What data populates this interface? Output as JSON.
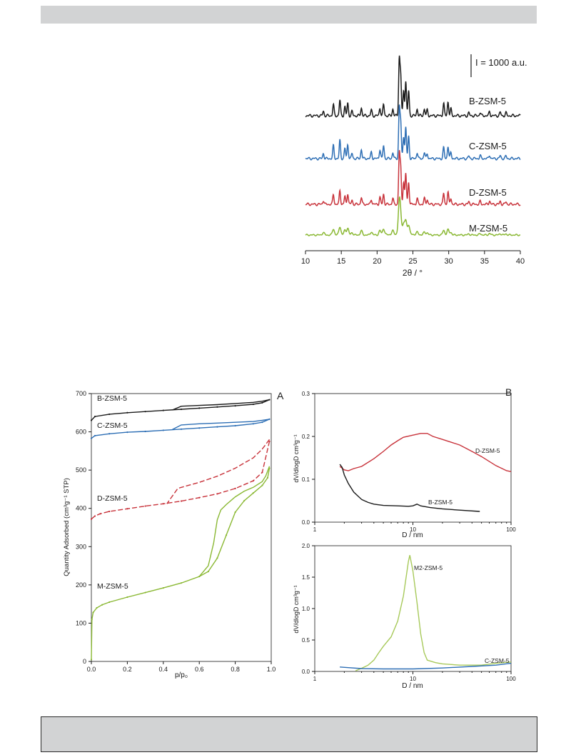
{
  "chart_data": [
    {
      "type": "line",
      "id": "xrd",
      "xlabel": "2θ / °",
      "xlim": [
        10,
        40
      ],
      "xticks": [
        10,
        15,
        20,
        25,
        30,
        35,
        40
      ],
      "scale_bar_label": "I = 1000 a.u.",
      "series": [
        {
          "name": "B-ZSM-5",
          "color": "#1a1a1a"
        },
        {
          "name": "C-ZSM-5",
          "color": "#2e6fb5"
        },
        {
          "name": "D-ZSM-5",
          "color": "#c8333b"
        },
        {
          "name": "M-ZSM-5",
          "color": "#8ab833"
        }
      ],
      "peaks": [
        {
          "x": 12.5,
          "h": 0.08
        },
        {
          "x": 13.9,
          "h": 0.2
        },
        {
          "x": 14.8,
          "h": 0.28
        },
        {
          "x": 15.5,
          "h": 0.16
        },
        {
          "x": 15.9,
          "h": 0.22
        },
        {
          "x": 16.5,
          "h": 0.08
        },
        {
          "x": 17.8,
          "h": 0.14
        },
        {
          "x": 19.2,
          "h": 0.1
        },
        {
          "x": 20.4,
          "h": 0.14
        },
        {
          "x": 20.9,
          "h": 0.2
        },
        {
          "x": 22.2,
          "h": 0.12
        },
        {
          "x": 23.1,
          "h": 1.0
        },
        {
          "x": 23.3,
          "h": 0.7
        },
        {
          "x": 23.7,
          "h": 0.45
        },
        {
          "x": 24.0,
          "h": 0.62
        },
        {
          "x": 24.4,
          "h": 0.45
        },
        {
          "x": 25.6,
          "h": 0.12
        },
        {
          "x": 26.6,
          "h": 0.12
        },
        {
          "x": 27.0,
          "h": 0.1
        },
        {
          "x": 29.3,
          "h": 0.22
        },
        {
          "x": 29.9,
          "h": 0.25
        },
        {
          "x": 30.3,
          "h": 0.12
        },
        {
          "x": 32.8,
          "h": 0.05
        },
        {
          "x": 34.4,
          "h": 0.06
        },
        {
          "x": 35.7,
          "h": 0.07
        },
        {
          "x": 37.2,
          "h": 0.06
        },
        {
          "x": 38.0,
          "h": 0.05
        }
      ]
    },
    {
      "type": "line",
      "id": "isotherm",
      "panel_label": "A",
      "xlabel": "p/p₀",
      "ylabel": "Quantity Adsorbed (cm³g⁻¹ STP)",
      "xlim": [
        0,
        1.0
      ],
      "ylim": [
        0,
        700
      ],
      "xticks": [
        0.0,
        0.2,
        0.4,
        0.6,
        0.8,
        1.0
      ],
      "yticks": [
        0,
        100,
        200,
        300,
        400,
        500,
        600,
        700
      ],
      "series": [
        {
          "name": "B-ZSM-5",
          "color": "#1a1a1a",
          "adsorption": [
            [
              0.0,
              630
            ],
            [
              0.02,
              640
            ],
            [
              0.1,
              646
            ],
            [
              0.2,
              650
            ],
            [
              0.3,
              653
            ],
            [
              0.4,
              656
            ],
            [
              0.5,
              659
            ],
            [
              0.6,
              662
            ],
            [
              0.7,
              665
            ],
            [
              0.8,
              668
            ],
            [
              0.9,
              672
            ],
            [
              0.95,
              676
            ],
            [
              0.99,
              684
            ]
          ],
          "desorption": [
            [
              0.99,
              684
            ],
            [
              0.95,
              680
            ],
            [
              0.9,
              677
            ],
            [
              0.8,
              674
            ],
            [
              0.7,
              671
            ],
            [
              0.6,
              669
            ],
            [
              0.5,
              667
            ],
            [
              0.45,
              657
            ]
          ]
        },
        {
          "name": "C-ZSM-5",
          "color": "#2e6fb5",
          "adsorption": [
            [
              0.0,
              583
            ],
            [
              0.02,
              590
            ],
            [
              0.1,
              595
            ],
            [
              0.2,
              599
            ],
            [
              0.3,
              601
            ],
            [
              0.4,
              604
            ],
            [
              0.5,
              607
            ],
            [
              0.6,
              610
            ],
            [
              0.7,
              613
            ],
            [
              0.8,
              616
            ],
            [
              0.9,
              621
            ],
            [
              0.95,
              625
            ],
            [
              0.99,
              633
            ]
          ],
          "desorption": [
            [
              0.99,
              633
            ],
            [
              0.95,
              630
            ],
            [
              0.9,
              627
            ],
            [
              0.8,
              625
            ],
            [
              0.7,
              623
            ],
            [
              0.6,
              621
            ],
            [
              0.5,
              618
            ],
            [
              0.45,
              606
            ]
          ]
        },
        {
          "name": "D-ZSM-5",
          "color": "#c8333b",
          "adsorption": [
            [
              0.0,
              372
            ],
            [
              0.02,
              380
            ],
            [
              0.05,
              386
            ],
            [
              0.1,
              392
            ],
            [
              0.2,
              399
            ],
            [
              0.3,
              406
            ],
            [
              0.4,
              412
            ],
            [
              0.5,
              419
            ],
            [
              0.6,
              428
            ],
            [
              0.7,
              438
            ],
            [
              0.8,
              452
            ],
            [
              0.9,
              472
            ],
            [
              0.95,
              494
            ],
            [
              0.99,
              575
            ]
          ],
          "desorption": [
            [
              0.99,
              580
            ],
            [
              0.95,
              555
            ],
            [
              0.9,
              532
            ],
            [
              0.8,
              505
            ],
            [
              0.7,
              484
            ],
            [
              0.6,
              468
            ],
            [
              0.5,
              455
            ],
            [
              0.48,
              452
            ],
            [
              0.42,
              412
            ]
          ]
        },
        {
          "name": "M-ZSM-5",
          "color": "#8ab833",
          "adsorption": [
            [
              0.0,
              5
            ],
            [
              0.003,
              110
            ],
            [
              0.01,
              128
            ],
            [
              0.03,
              140
            ],
            [
              0.06,
              148
            ],
            [
              0.1,
              155
            ],
            [
              0.2,
              168
            ],
            [
              0.3,
              180
            ],
            [
              0.4,
              192
            ],
            [
              0.5,
              205
            ],
            [
              0.6,
              222
            ],
            [
              0.65,
              235
            ],
            [
              0.7,
              270
            ],
            [
              0.75,
              330
            ],
            [
              0.8,
              390
            ],
            [
              0.85,
              420
            ],
            [
              0.9,
              440
            ],
            [
              0.95,
              460
            ],
            [
              0.98,
              480
            ],
            [
              0.99,
              505
            ]
          ],
          "desorption": [
            [
              0.99,
              510
            ],
            [
              0.97,
              485
            ],
            [
              0.95,
              470
            ],
            [
              0.9,
              455
            ],
            [
              0.85,
              445
            ],
            [
              0.8,
              430
            ],
            [
              0.75,
              410
            ],
            [
              0.72,
              396
            ],
            [
              0.7,
              370
            ],
            [
              0.68,
              310
            ],
            [
              0.65,
              250
            ],
            [
              0.6,
              222
            ]
          ]
        }
      ]
    },
    {
      "type": "line",
      "id": "psd-top",
      "panel_label": "B",
      "xlabel": "D / nm",
      "ylabel": "dV/dlogD cm³g⁻¹",
      "xscale": "log",
      "xlim": [
        1,
        100
      ],
      "ylim": [
        0,
        0.3
      ],
      "xticks": [
        1,
        10,
        100
      ],
      "yticks": [
        0.0,
        0.1,
        0.2,
        0.3
      ],
      "series": [
        {
          "name": "D-ZSM-5",
          "color": "#c8333b",
          "points": [
            [
              1.8,
              0.13
            ],
            [
              2.0,
              0.122
            ],
            [
              2.2,
              0.12
            ],
            [
              2.5,
              0.125
            ],
            [
              3,
              0.13
            ],
            [
              4,
              0.148
            ],
            [
              5,
              0.165
            ],
            [
              6,
              0.18
            ],
            [
              7,
              0.19
            ],
            [
              8,
              0.198
            ],
            [
              10,
              0.203
            ],
            [
              12,
              0.207
            ],
            [
              14,
              0.207
            ],
            [
              16,
              0.2
            ],
            [
              20,
              0.193
            ],
            [
              30,
              0.18
            ],
            [
              40,
              0.165
            ],
            [
              50,
              0.153
            ],
            [
              70,
              0.132
            ],
            [
              90,
              0.12
            ],
            [
              100,
              0.118
            ]
          ]
        },
        {
          "name": "B-ZSM-5",
          "color": "#1a1a1a",
          "points": [
            [
              1.8,
              0.135
            ],
            [
              1.9,
              0.128
            ],
            [
              2.0,
              0.11
            ],
            [
              2.2,
              0.09
            ],
            [
              2.5,
              0.07
            ],
            [
              3.0,
              0.053
            ],
            [
              3.5,
              0.046
            ],
            [
              4.0,
              0.042
            ],
            [
              5,
              0.039
            ],
            [
              7,
              0.038
            ],
            [
              9,
              0.037
            ],
            [
              10,
              0.038
            ],
            [
              11,
              0.042
            ],
            [
              12,
              0.038
            ],
            [
              15,
              0.034
            ],
            [
              20,
              0.031
            ],
            [
              30,
              0.028
            ],
            [
              48,
              0.025
            ]
          ]
        }
      ]
    },
    {
      "type": "line",
      "id": "psd-bottom",
      "xlabel": "D / nm",
      "ylabel": "dV/dlogD cm³g⁻¹",
      "xscale": "log",
      "xlim": [
        1,
        100
      ],
      "ylim": [
        0,
        2.0
      ],
      "xticks": [
        1,
        10,
        100
      ],
      "yticks": [
        0.0,
        0.5,
        1.0,
        1.5,
        2.0
      ],
      "series": [
        {
          "name": "M2-ZSM-5",
          "color": "#a7c95a",
          "points": [
            [
              2.6,
              0.01
            ],
            [
              3,
              0.05
            ],
            [
              3.5,
              0.1
            ],
            [
              4,
              0.18
            ],
            [
              4.5,
              0.3
            ],
            [
              5,
              0.4
            ],
            [
              6,
              0.55
            ],
            [
              7,
              0.8
            ],
            [
              8,
              1.2
            ],
            [
              9,
              1.75
            ],
            [
              9.3,
              1.85
            ],
            [
              10,
              1.6
            ],
            [
              11,
              1.1
            ],
            [
              12,
              0.6
            ],
            [
              13,
              0.3
            ],
            [
              14,
              0.18
            ],
            [
              17,
              0.14
            ],
            [
              20,
              0.12
            ],
            [
              30,
              0.1
            ],
            [
              50,
              0.1
            ],
            [
              70,
              0.13
            ],
            [
              100,
              0.15
            ]
          ]
        },
        {
          "name": "C-ZSM-5",
          "color": "#2e6fb5",
          "points": [
            [
              1.8,
              0.07
            ],
            [
              2.2,
              0.06
            ],
            [
              3,
              0.045
            ],
            [
              5,
              0.04
            ],
            [
              10,
              0.04
            ],
            [
              20,
              0.055
            ],
            [
              40,
              0.08
            ],
            [
              70,
              0.1
            ],
            [
              100,
              0.13
            ]
          ]
        }
      ]
    }
  ]
}
